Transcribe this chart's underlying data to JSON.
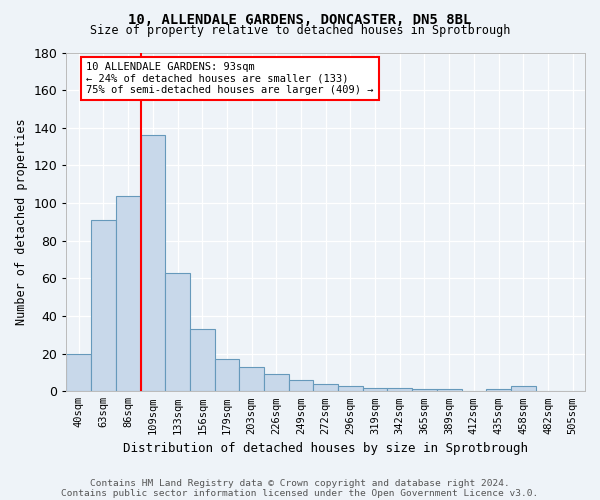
{
  "title1": "10, ALLENDALE GARDENS, DONCASTER, DN5 8BL",
  "title2": "Size of property relative to detached houses in Sprotbrough",
  "xlabel": "Distribution of detached houses by size in Sprotbrough",
  "ylabel": "Number of detached properties",
  "bar_labels": [
    "40sqm",
    "63sqm",
    "86sqm",
    "109sqm",
    "133sqm",
    "156sqm",
    "179sqm",
    "203sqm",
    "226sqm",
    "249sqm",
    "272sqm",
    "296sqm",
    "319sqm",
    "342sqm",
    "365sqm",
    "389sqm",
    "412sqm",
    "435sqm",
    "458sqm",
    "482sqm",
    "505sqm"
  ],
  "bar_values": [
    20,
    91,
    104,
    136,
    63,
    33,
    17,
    13,
    9,
    6,
    4,
    3,
    2,
    2,
    1,
    1,
    0,
    1,
    3,
    0,
    0
  ],
  "bar_color": "#c8d8ea",
  "bar_edge_color": "#6699bb",
  "background_color": "#eef3f8",
  "vline_x": 2.5,
  "vline_color": "red",
  "annotation_text": "10 ALLENDALE GARDENS: 93sqm\n← 24% of detached houses are smaller (133)\n75% of semi-detached houses are larger (409) →",
  "annotation_box_color": "white",
  "annotation_box_edge": "red",
  "ylim": [
    0,
    180
  ],
  "yticks": [
    0,
    20,
    40,
    60,
    80,
    100,
    120,
    140,
    160,
    180
  ],
  "footer1": "Contains HM Land Registry data © Crown copyright and database right 2024.",
  "footer2": "Contains public sector information licensed under the Open Government Licence v3.0."
}
